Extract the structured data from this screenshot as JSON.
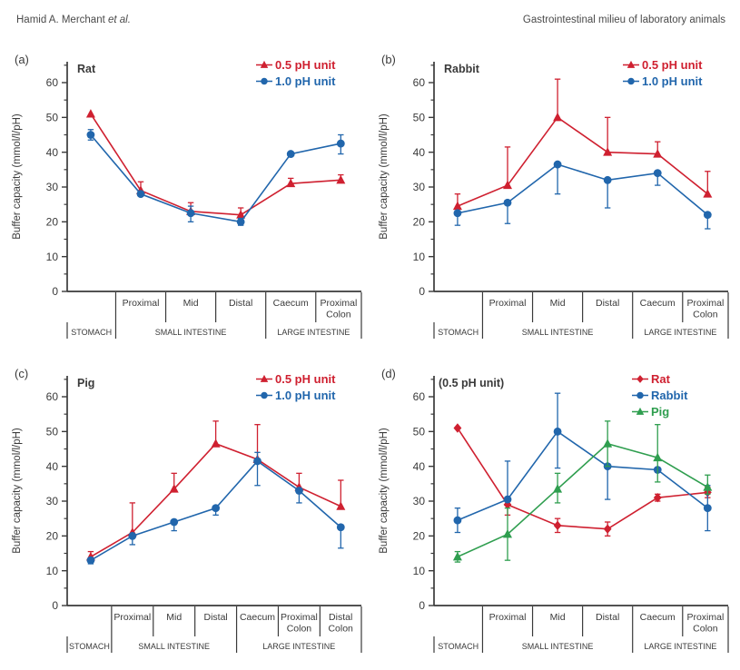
{
  "header": {
    "author": "Hamid A. Merchant",
    "author_suffix": " et al.",
    "running_title": "Gastrointestinal milieu of laboratory animals"
  },
  "palette": {
    "red": "#cf2030",
    "blue": "#2166ac",
    "green": "#2f9e4f",
    "axis": "#3a3a3a",
    "text": "#3a3a3a"
  },
  "chart_data": [
    {
      "type": "line",
      "panel_label": "(a)",
      "title": "Rat",
      "ylabel": "Buffer capacity (mmol/l/pH)",
      "ylim": [
        0,
        66
      ],
      "yticks": [
        0,
        10,
        20,
        30,
        40,
        50,
        60
      ],
      "minor_ticks": [
        5,
        15,
        25,
        35,
        45,
        55,
        65
      ],
      "grid": false,
      "legend_position": "top-right",
      "seg_labels": [
        "",
        "Proximal",
        "Mid",
        "Distal",
        "Caecum",
        "Proximal\nColon"
      ],
      "group_labels": [
        {
          "text": "STOMACH",
          "from": 0,
          "to": 1
        },
        {
          "text": "SMALL INTESTINE",
          "from": 1,
          "to": 4
        },
        {
          "text": "LARGE INTESTINE",
          "from": 4,
          "to": 6
        }
      ],
      "series": [
        {
          "name": "0.5 pH unit",
          "color": "red",
          "marker": "triangle",
          "values": [
            51,
            29,
            23,
            22,
            31,
            32
          ],
          "err_up": [
            0,
            2.5,
            2.5,
            2,
            1.5,
            1.5
          ],
          "err_down": [
            0,
            0,
            0,
            0,
            0,
            0
          ]
        },
        {
          "name": "1.0 pH unit",
          "color": "blue",
          "marker": "circle",
          "values": [
            45,
            28,
            22.5,
            20,
            39.5,
            42.5
          ],
          "err_up": [
            1.5,
            0,
            2,
            1,
            0,
            2.5
          ],
          "err_down": [
            1.5,
            0,
            2.5,
            1,
            0,
            3
          ]
        }
      ]
    },
    {
      "type": "line",
      "panel_label": "(b)",
      "title": "Rabbit",
      "ylabel": "Buffer capacity (mmol/l/pH)",
      "ylim": [
        0,
        66
      ],
      "yticks": [
        0,
        10,
        20,
        30,
        40,
        50,
        60
      ],
      "minor_ticks": [
        5,
        15,
        25,
        35,
        45,
        55,
        65
      ],
      "grid": false,
      "legend_position": "top-right",
      "seg_labels": [
        "",
        "Proximal",
        "Mid",
        "Distal",
        "Caecum",
        "Proximal\nColon"
      ],
      "group_labels": [
        {
          "text": "STOMACH",
          "from": 0,
          "to": 1
        },
        {
          "text": "SMALL INTESTINE",
          "from": 1,
          "to": 4
        },
        {
          "text": "LARGE INTESTINE",
          "from": 4,
          "to": 6
        }
      ],
      "series": [
        {
          "name": "0.5 pH unit",
          "color": "red",
          "marker": "triangle",
          "values": [
            24.5,
            30.5,
            50,
            40,
            39.5,
            28
          ],
          "err_up": [
            3.5,
            11,
            11,
            10,
            3.5,
            6.5
          ],
          "err_down": [
            2,
            0,
            0,
            0,
            0,
            0
          ]
        },
        {
          "name": "1.0 pH unit",
          "color": "blue",
          "marker": "circle",
          "values": [
            22.5,
            25.5,
            36.5,
            32,
            34,
            22
          ],
          "err_up": [
            0,
            0,
            0,
            0,
            0,
            0
          ],
          "err_down": [
            3.5,
            6,
            8.5,
            8,
            3.5,
            4
          ]
        }
      ]
    },
    {
      "type": "line",
      "panel_label": "(c)",
      "title": "Pig",
      "ylabel": "Buffer capacity (mmol/l/pH)",
      "ylim": [
        0,
        66
      ],
      "yticks": [
        0,
        10,
        20,
        30,
        40,
        50,
        60
      ],
      "minor_ticks": [
        5,
        15,
        25,
        35,
        45,
        55,
        65
      ],
      "grid": false,
      "legend_position": "top-right",
      "seg_labels": [
        "",
        "Proximal",
        "Mid",
        "Distal",
        "Caecum",
        "Proximal\nColon",
        "Distal\nColon"
      ],
      "group_labels": [
        {
          "text": "STOMACH",
          "from": 0,
          "to": 1
        },
        {
          "text": "SMALL INTESTINE",
          "from": 1,
          "to": 4
        },
        {
          "text": "LARGE INTESTINE",
          "from": 4,
          "to": 7
        }
      ],
      "series": [
        {
          "name": "0.5 pH unit",
          "color": "red",
          "marker": "triangle",
          "values": [
            14,
            21,
            33.5,
            46.5,
            42,
            34,
            28.5
          ],
          "err_up": [
            1.5,
            8.5,
            4.5,
            6.5,
            10,
            4,
            7.5
          ],
          "err_down": [
            0,
            0,
            0,
            0,
            0,
            0,
            0
          ]
        },
        {
          "name": "1.0 pH unit",
          "color": "blue",
          "marker": "circle",
          "values": [
            13,
            20,
            24,
            28,
            41.5,
            33,
            22.5
          ],
          "err_up": [
            0,
            0,
            0,
            0,
            2.5,
            0,
            0
          ],
          "err_down": [
            1,
            2.5,
            2.5,
            2,
            7,
            3.5,
            6
          ]
        }
      ]
    },
    {
      "type": "line",
      "panel_label": "(d)",
      "title": "(0.5 pH unit)",
      "ylabel": "Buffer capacity (mmol/l/pH)",
      "ylim": [
        0,
        66
      ],
      "yticks": [
        0,
        10,
        20,
        30,
        40,
        50,
        60
      ],
      "minor_ticks": [
        5,
        15,
        25,
        35,
        45,
        55,
        65
      ],
      "grid": false,
      "legend_position": "top-right",
      "seg_labels": [
        "",
        "Proximal",
        "Mid",
        "Distal",
        "Caecum",
        "Proximal\nColon"
      ],
      "group_labels": [
        {
          "text": "STOMACH",
          "from": 0,
          "to": 1
        },
        {
          "text": "SMALL INTESTINE",
          "from": 1,
          "to": 4
        },
        {
          "text": "LARGE INTESTINE",
          "from": 4,
          "to": 6
        }
      ],
      "series": [
        {
          "name": "Rat",
          "color": "red",
          "marker": "diamond",
          "values": [
            51,
            29,
            23,
            22,
            31,
            32.5
          ],
          "err_up": [
            0,
            2,
            2,
            2,
            1,
            1.5
          ],
          "err_down": [
            0,
            3,
            2,
            2,
            1,
            1.5
          ]
        },
        {
          "name": "Rabbit",
          "color": "blue",
          "marker": "circle",
          "values": [
            24.5,
            30.5,
            50,
            40,
            39,
            28
          ],
          "err_up": [
            3.5,
            11,
            11,
            0,
            0,
            6.5
          ],
          "err_down": [
            3.5,
            0,
            10.5,
            9.5,
            0,
            6.5
          ]
        },
        {
          "name": "Pig",
          "color": "green",
          "marker": "triangle",
          "values": [
            14,
            20.5,
            33.5,
            46.5,
            42.5,
            34
          ],
          "err_up": [
            1.5,
            7.5,
            4.5,
            6.5,
            9.5,
            3.5
          ],
          "err_down": [
            1.5,
            7.5,
            4,
            6.5,
            7,
            2
          ]
        }
      ]
    }
  ]
}
